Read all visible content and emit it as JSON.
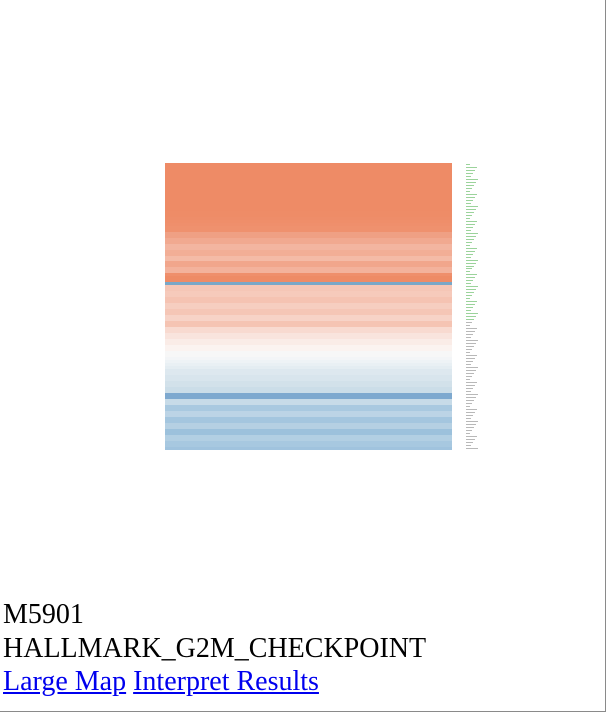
{
  "gene_set": {
    "id": "M5901",
    "name": "HALLMARK_G2M_CHECKPOINT"
  },
  "links": {
    "large_map": "Large Map",
    "interpret_results": "Interpret Results"
  },
  "colors": {
    "link": "#0000ee",
    "high": "#ee8b65",
    "low": "#7fb3d6",
    "label_high": "#9bd39b",
    "label_low": "#b8b8b8"
  },
  "chart_data": {
    "type": "heatmap",
    "color_scale": "diverging (orange = high, white = neutral, blue = low)",
    "rows": [
      "#ee8b66",
      "#ee8b66",
      "#ee8b66",
      "#ee8b66",
      "#ee8b66",
      "#ee8b66",
      "#ee8b66",
      "#ee8b66",
      "#ee8b66",
      "#ee8b66",
      "#ee8b66",
      "#ee8b66",
      "#ee8b66",
      "#ee8b66",
      "#ee8b66",
      "#ee8b66",
      "#ee8c67",
      "#ee8c67",
      "#ee8d69",
      "#ef8e6a",
      "#ef8f6c",
      "#ef916e",
      "#ef916e",
      "#efa084",
      "#efa084",
      "#f1a990",
      "#f1a990",
      "#f3b5a0",
      "#f3b5a0",
      "#f2ae96",
      "#f2ae96",
      "#f4bba7",
      "#f4bba7",
      "#f1a68c",
      "#f1a68c",
      "#f3b29c",
      "#f3b29c",
      "#ef8f6c",
      "#ee8b66",
      "#ee8b66",
      "#7aa7c7",
      "#f5c6b6",
      "#f5c6b6",
      "#f6cabb",
      "#f6cabb",
      "#f5c3b2",
      "#f5c3b2",
      "#f6cec0",
      "#f6cec0",
      "#f5c6b6",
      "#f5c6b6",
      "#f7d3c7",
      "#f7d3c7",
      "#f5c4b3",
      "#f5c4b3",
      "#f8dad0",
      "#f8dad0",
      "#f9e4dd",
      "#f9e4dd",
      "#faece7",
      "#faece7",
      "#fbf3f0",
      "#fbf3f0",
      "#f7f7f7",
      "#f7f7f7",
      "#f3f5f7",
      "#eef3f6",
      "#e9f0f4",
      "#e4edf2",
      "#dde8ef",
      "#dde8ef",
      "#d8e5ed",
      "#d8e5ed",
      "#d2e1ea",
      "#d2e1ea",
      "#cbdde8",
      "#cbdde8",
      "#7ea9cf",
      "#7ea9cf",
      "#c7dbe8",
      "#c7dbe8",
      "#a9c9e0",
      "#a9c9e0",
      "#bcd4e6",
      "#bcd4e6",
      "#a4c6df",
      "#a4c6df",
      "#b5d0e3",
      "#b5d0e3",
      "#9cc1dc",
      "#9cc1dc",
      "#b2cfe3",
      "#b2cfe3",
      "#a7c8e0",
      "#a7c8e0",
      "#a0c3de"
    ]
  }
}
